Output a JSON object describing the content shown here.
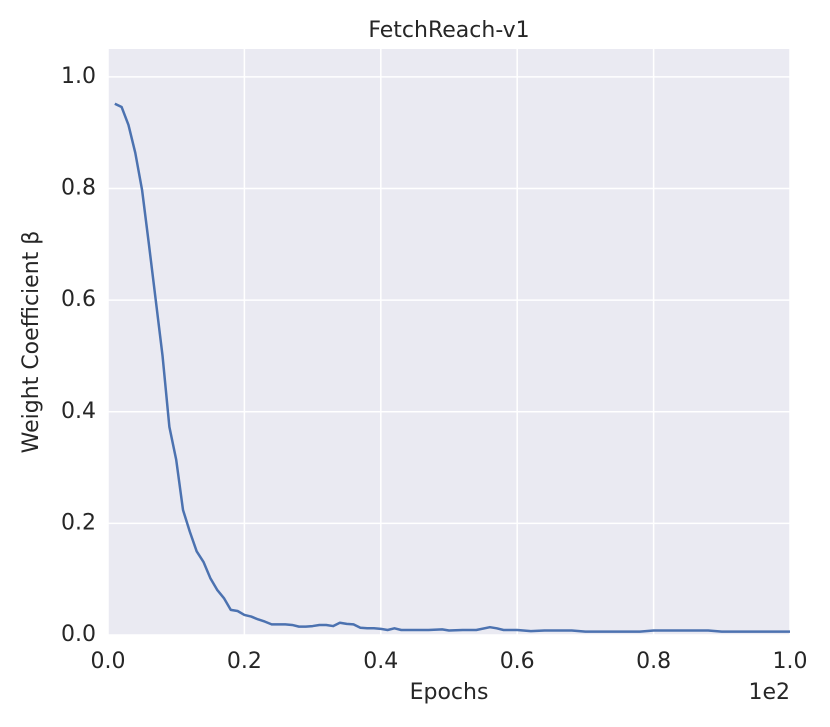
{
  "chart_data": {
    "type": "line",
    "title": "FetchReach-v1",
    "xlabel": "Epochs",
    "ylabel": "Weight Coefficient β",
    "x_offset_label": "1e2",
    "x": [
      0.01,
      0.02,
      0.03,
      0.04,
      0.05,
      0.06,
      0.07,
      0.08,
      0.09,
      0.1,
      0.11,
      0.12,
      0.13,
      0.14,
      0.15,
      0.16,
      0.17,
      0.18,
      0.19,
      0.2,
      0.21,
      0.22,
      0.23,
      0.24,
      0.25,
      0.26,
      0.27,
      0.28,
      0.29,
      0.3,
      0.31,
      0.32,
      0.33,
      0.34,
      0.35,
      0.36,
      0.37,
      0.38,
      0.39,
      0.4,
      0.41,
      0.42,
      0.43,
      0.45,
      0.47,
      0.49,
      0.5,
      0.52,
      0.54,
      0.56,
      0.57,
      0.58,
      0.6,
      0.62,
      0.64,
      0.66,
      0.68,
      0.7,
      0.74,
      0.78,
      0.8,
      0.84,
      0.88,
      0.9,
      0.94,
      1.0
    ],
    "series": [
      {
        "name": "β",
        "color": "#4c72b0",
        "values": [
          0.952,
          0.946,
          0.914,
          0.864,
          0.797,
          0.7,
          0.6,
          0.5,
          0.373,
          0.314,
          0.224,
          0.185,
          0.15,
          0.131,
          0.102,
          0.081,
          0.066,
          0.045,
          0.043,
          0.036,
          0.033,
          0.028,
          0.024,
          0.019,
          0.019,
          0.019,
          0.018,
          0.015,
          0.015,
          0.016,
          0.018,
          0.018,
          0.016,
          0.022,
          0.02,
          0.019,
          0.013,
          0.012,
          0.012,
          0.011,
          0.009,
          0.012,
          0.009,
          0.009,
          0.009,
          0.01,
          0.008,
          0.009,
          0.009,
          0.014,
          0.012,
          0.009,
          0.009,
          0.007,
          0.008,
          0.008,
          0.008,
          0.006,
          0.006,
          0.006,
          0.008,
          0.008,
          0.008,
          0.006,
          0.006,
          0.006
        ]
      }
    ],
    "xlim": [
      0,
      1.0
    ],
    "ylim": [
      0,
      1.05
    ],
    "xticks": [
      {
        "value": 0,
        "label": "0.0"
      },
      0.2,
      0.4,
      0.6,
      0.8,
      {
        "value": 1,
        "label": "1.0"
      }
    ],
    "yticks": [
      {
        "value": 0,
        "label": "0.0"
      },
      0.2,
      0.4,
      0.6,
      0.8,
      {
        "value": 1,
        "label": "1.0"
      }
    ],
    "grid": true
  }
}
